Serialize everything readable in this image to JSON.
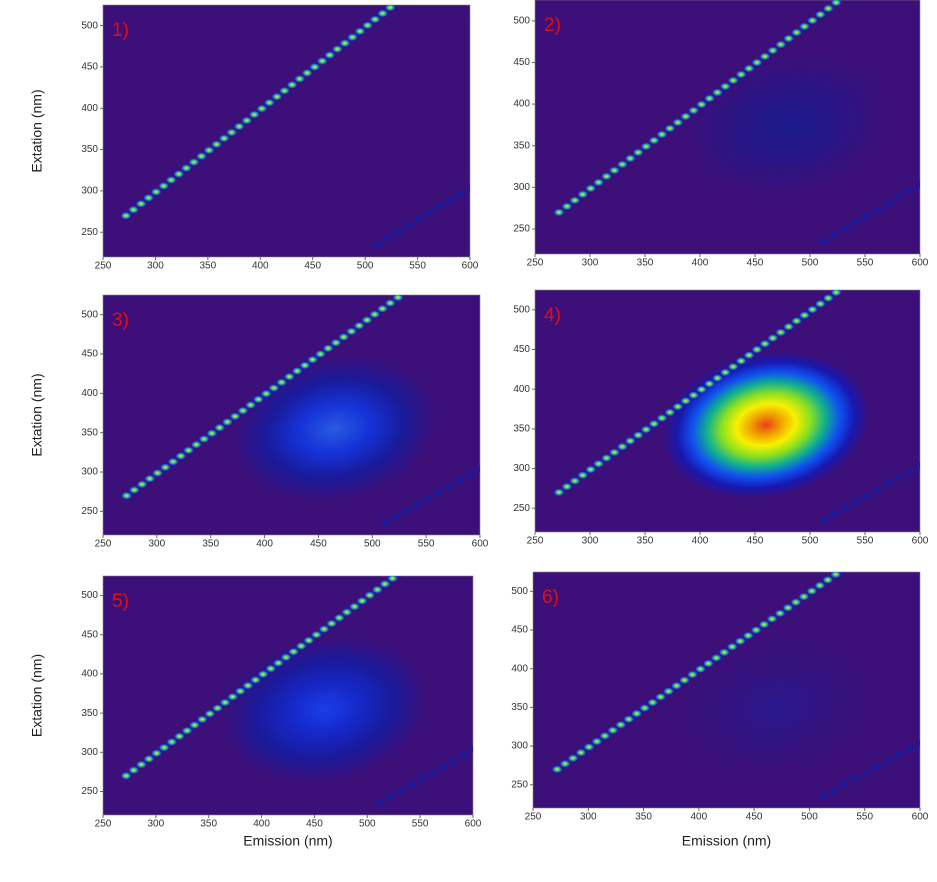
{
  "chart_data": [
    {
      "type": "contour",
      "label": "1)",
      "y_label": "Extation (nm)",
      "xlim": [
        250,
        600
      ],
      "ylim": [
        220,
        525
      ],
      "xticks": [
        250,
        300,
        350,
        400,
        450,
        500,
        550,
        600
      ],
      "yticks": [
        250,
        300,
        350,
        400,
        450,
        500
      ],
      "background": "#3d0f78"
    },
    {
      "type": "contour",
      "label": "2)",
      "xlim": [
        250,
        600
      ],
      "ylim": [
        220,
        525
      ],
      "xticks": [
        250,
        300,
        350,
        400,
        450,
        500,
        550,
        600
      ],
      "yticks": [
        250,
        300,
        350,
        400,
        450,
        500
      ],
      "background": "#3d0f78",
      "peak": {
        "x": 480,
        "y": 375,
        "colors": [
          "#1a1a8c",
          "#2a1585",
          "#3d0f78"
        ]
      }
    },
    {
      "type": "contour",
      "label": "3)",
      "y_label": "Extation (nm)",
      "xlim": [
        250,
        600
      ],
      "ylim": [
        220,
        525
      ],
      "xticks": [
        250,
        300,
        350,
        400,
        450,
        500,
        550,
        600
      ],
      "yticks": [
        250,
        300,
        350,
        400,
        450,
        500
      ],
      "background": "#3d0f78",
      "peak": {
        "x": 465,
        "y": 355,
        "colors": [
          "#2a5be0",
          "#1533d8",
          "#1a1a9a",
          "#3d0f78"
        ]
      }
    },
    {
      "type": "contour",
      "label": "4)",
      "xlim": [
        250,
        600
      ],
      "ylim": [
        220,
        525
      ],
      "xticks": [
        250,
        300,
        350,
        400,
        450,
        500,
        550,
        600
      ],
      "yticks": [
        250,
        300,
        350,
        400,
        450,
        500
      ],
      "background": "#3d0f78",
      "peak": {
        "x": 460,
        "y": 355,
        "colors": [
          "#e8401a",
          "#f0a000",
          "#f8f000",
          "#8ce020",
          "#10b090",
          "#1050f0",
          "#1818b0",
          "#3d0f78"
        ]
      }
    },
    {
      "type": "contour",
      "label": "5)",
      "y_label": "Extation (nm)",
      "x_label": "Emission (nm)",
      "xlim": [
        250,
        600
      ],
      "ylim": [
        220,
        525
      ],
      "xticks": [
        250,
        300,
        350,
        400,
        450,
        500,
        550,
        600
      ],
      "yticks": [
        250,
        300,
        350,
        400,
        450,
        500
      ],
      "background": "#3d0f78",
      "peak": {
        "x": 460,
        "y": 355,
        "colors": [
          "#1c3ee8",
          "#1628c8",
          "#1a1a9a",
          "#3d0f78"
        ]
      }
    },
    {
      "type": "contour",
      "label": "6)",
      "x_label": "Emission (nm)",
      "xlim": [
        250,
        600
      ],
      "ylim": [
        220,
        525
      ],
      "xticks": [
        250,
        300,
        350,
        400,
        450,
        500,
        550,
        600
      ],
      "yticks": [
        250,
        300,
        350,
        400,
        450,
        500
      ],
      "background": "#3d0f78",
      "peak": {
        "x": 470,
        "y": 350,
        "colors": [
          "#2a1890",
          "#33137f",
          "#3d0f78"
        ]
      }
    }
  ]
}
